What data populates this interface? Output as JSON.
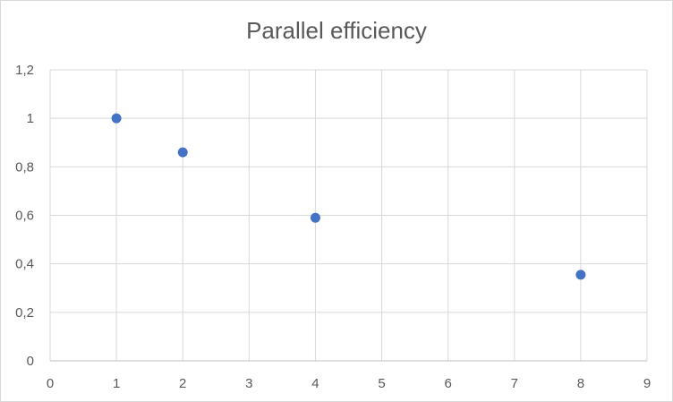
{
  "chart_data": {
    "type": "scatter",
    "title": "Parallel efficiency",
    "xlabel": "",
    "ylabel": "",
    "xlim": [
      0,
      9
    ],
    "ylim": [
      0,
      1.2
    ],
    "x_ticks": [
      "0",
      "1",
      "2",
      "3",
      "4",
      "5",
      "6",
      "7",
      "8",
      "9"
    ],
    "y_ticks": [
      "0",
      "0,2",
      "0,4",
      "0,6",
      "0,8",
      "1",
      "1,2"
    ],
    "grid": "on",
    "legend": "none",
    "series": [
      {
        "color": "#4472c4",
        "points": [
          {
            "x": 1,
            "y": 1.0
          },
          {
            "x": 2,
            "y": 0.86
          },
          {
            "x": 4,
            "y": 0.59
          },
          {
            "x": 8,
            "y": 0.355
          }
        ]
      }
    ]
  }
}
